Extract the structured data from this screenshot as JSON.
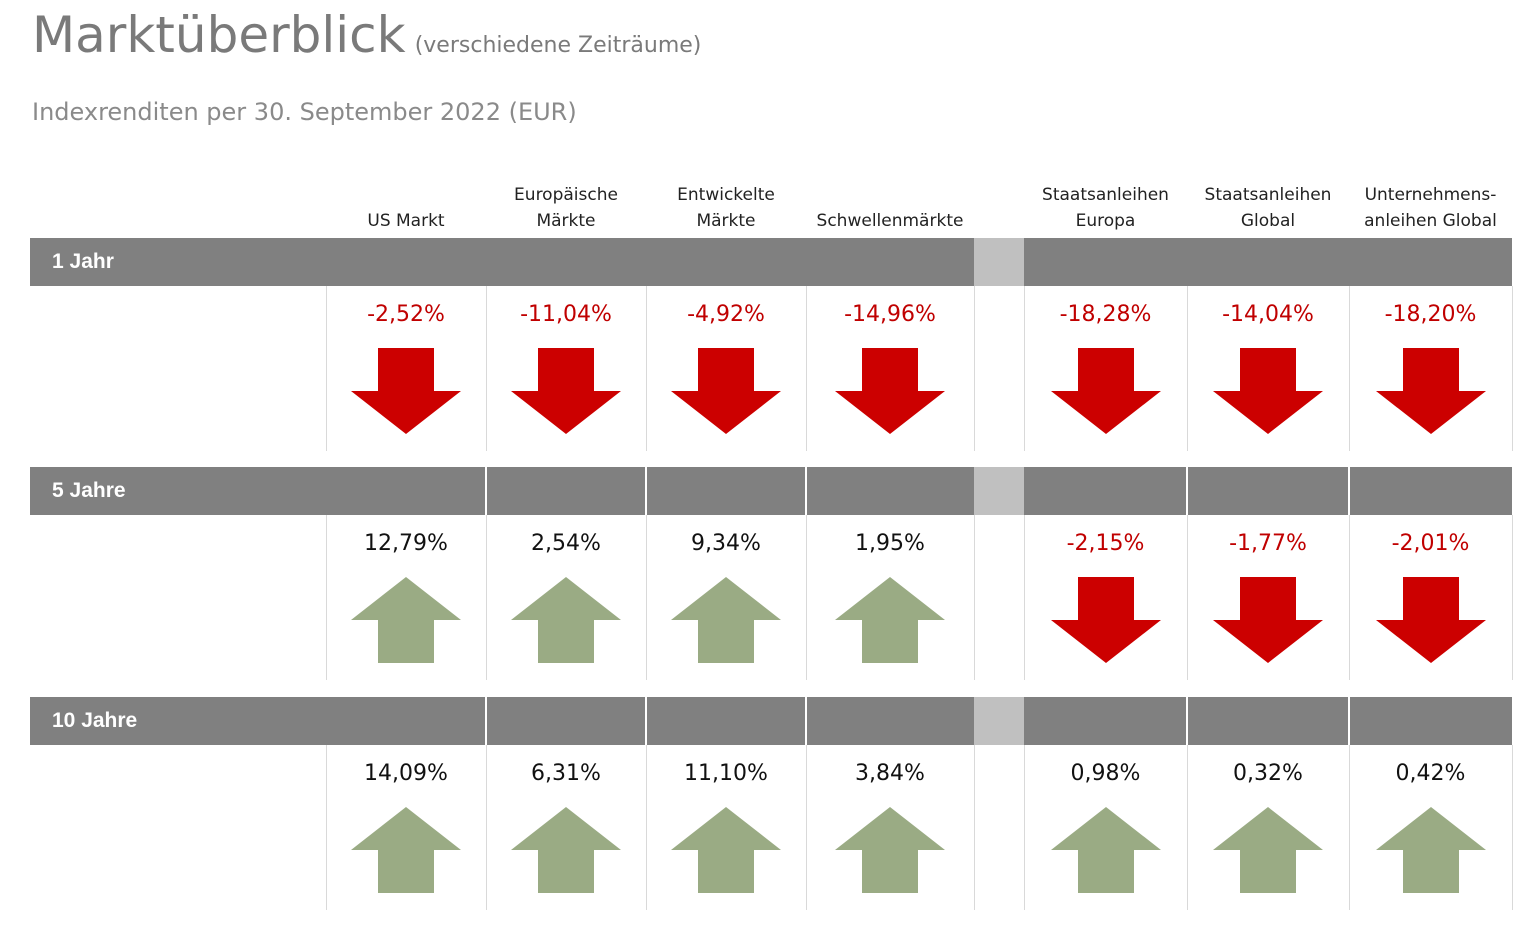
{
  "header": {
    "title": "Marktüberblick",
    "title_suffix": "(verschiedene Zeiträume)",
    "subtitle": "Indexrenditen per 30. September 2022 (EUR)"
  },
  "columns": [
    "US Markt",
    "Europäische\nMärkte",
    "Entwickelte\nMärkte",
    "Schwellenmärkte",
    "Staatsanleihen\nEuropa",
    "Staatsanleihen\nGlobal",
    "Unternehmens-\nanleihen Global"
  ],
  "periods": [
    {
      "label": "1 Jahr",
      "values": [
        "-2,52%",
        "-11,04%",
        "-4,92%",
        "-14,96%",
        "-18,28%",
        "-14,04%",
        "-18,20%"
      ],
      "directions": [
        "down",
        "down",
        "down",
        "down",
        "down",
        "down",
        "down"
      ]
    },
    {
      "label": "5 Jahre",
      "values": [
        "12,79%",
        "2,54%",
        "9,34%",
        "1,95%",
        "-2,15%",
        "-1,77%",
        "-2,01%"
      ],
      "directions": [
        "up",
        "up",
        "up",
        "up",
        "down",
        "down",
        "down"
      ]
    },
    {
      "label": "10 Jahre",
      "values": [
        "14,09%",
        "6,31%",
        "11,10%",
        "3,84%",
        "0,98%",
        "0,32%",
        "0,42%"
      ],
      "directions": [
        "up",
        "up",
        "up",
        "up",
        "up",
        "up",
        "up"
      ]
    }
  ],
  "colors": {
    "negative": "#c00000",
    "positive_text": "#111111",
    "arrow_down": "#cc0000",
    "arrow_up": "#9aab84",
    "band": "#808080",
    "band_gap": "#c0c0c0"
  }
}
